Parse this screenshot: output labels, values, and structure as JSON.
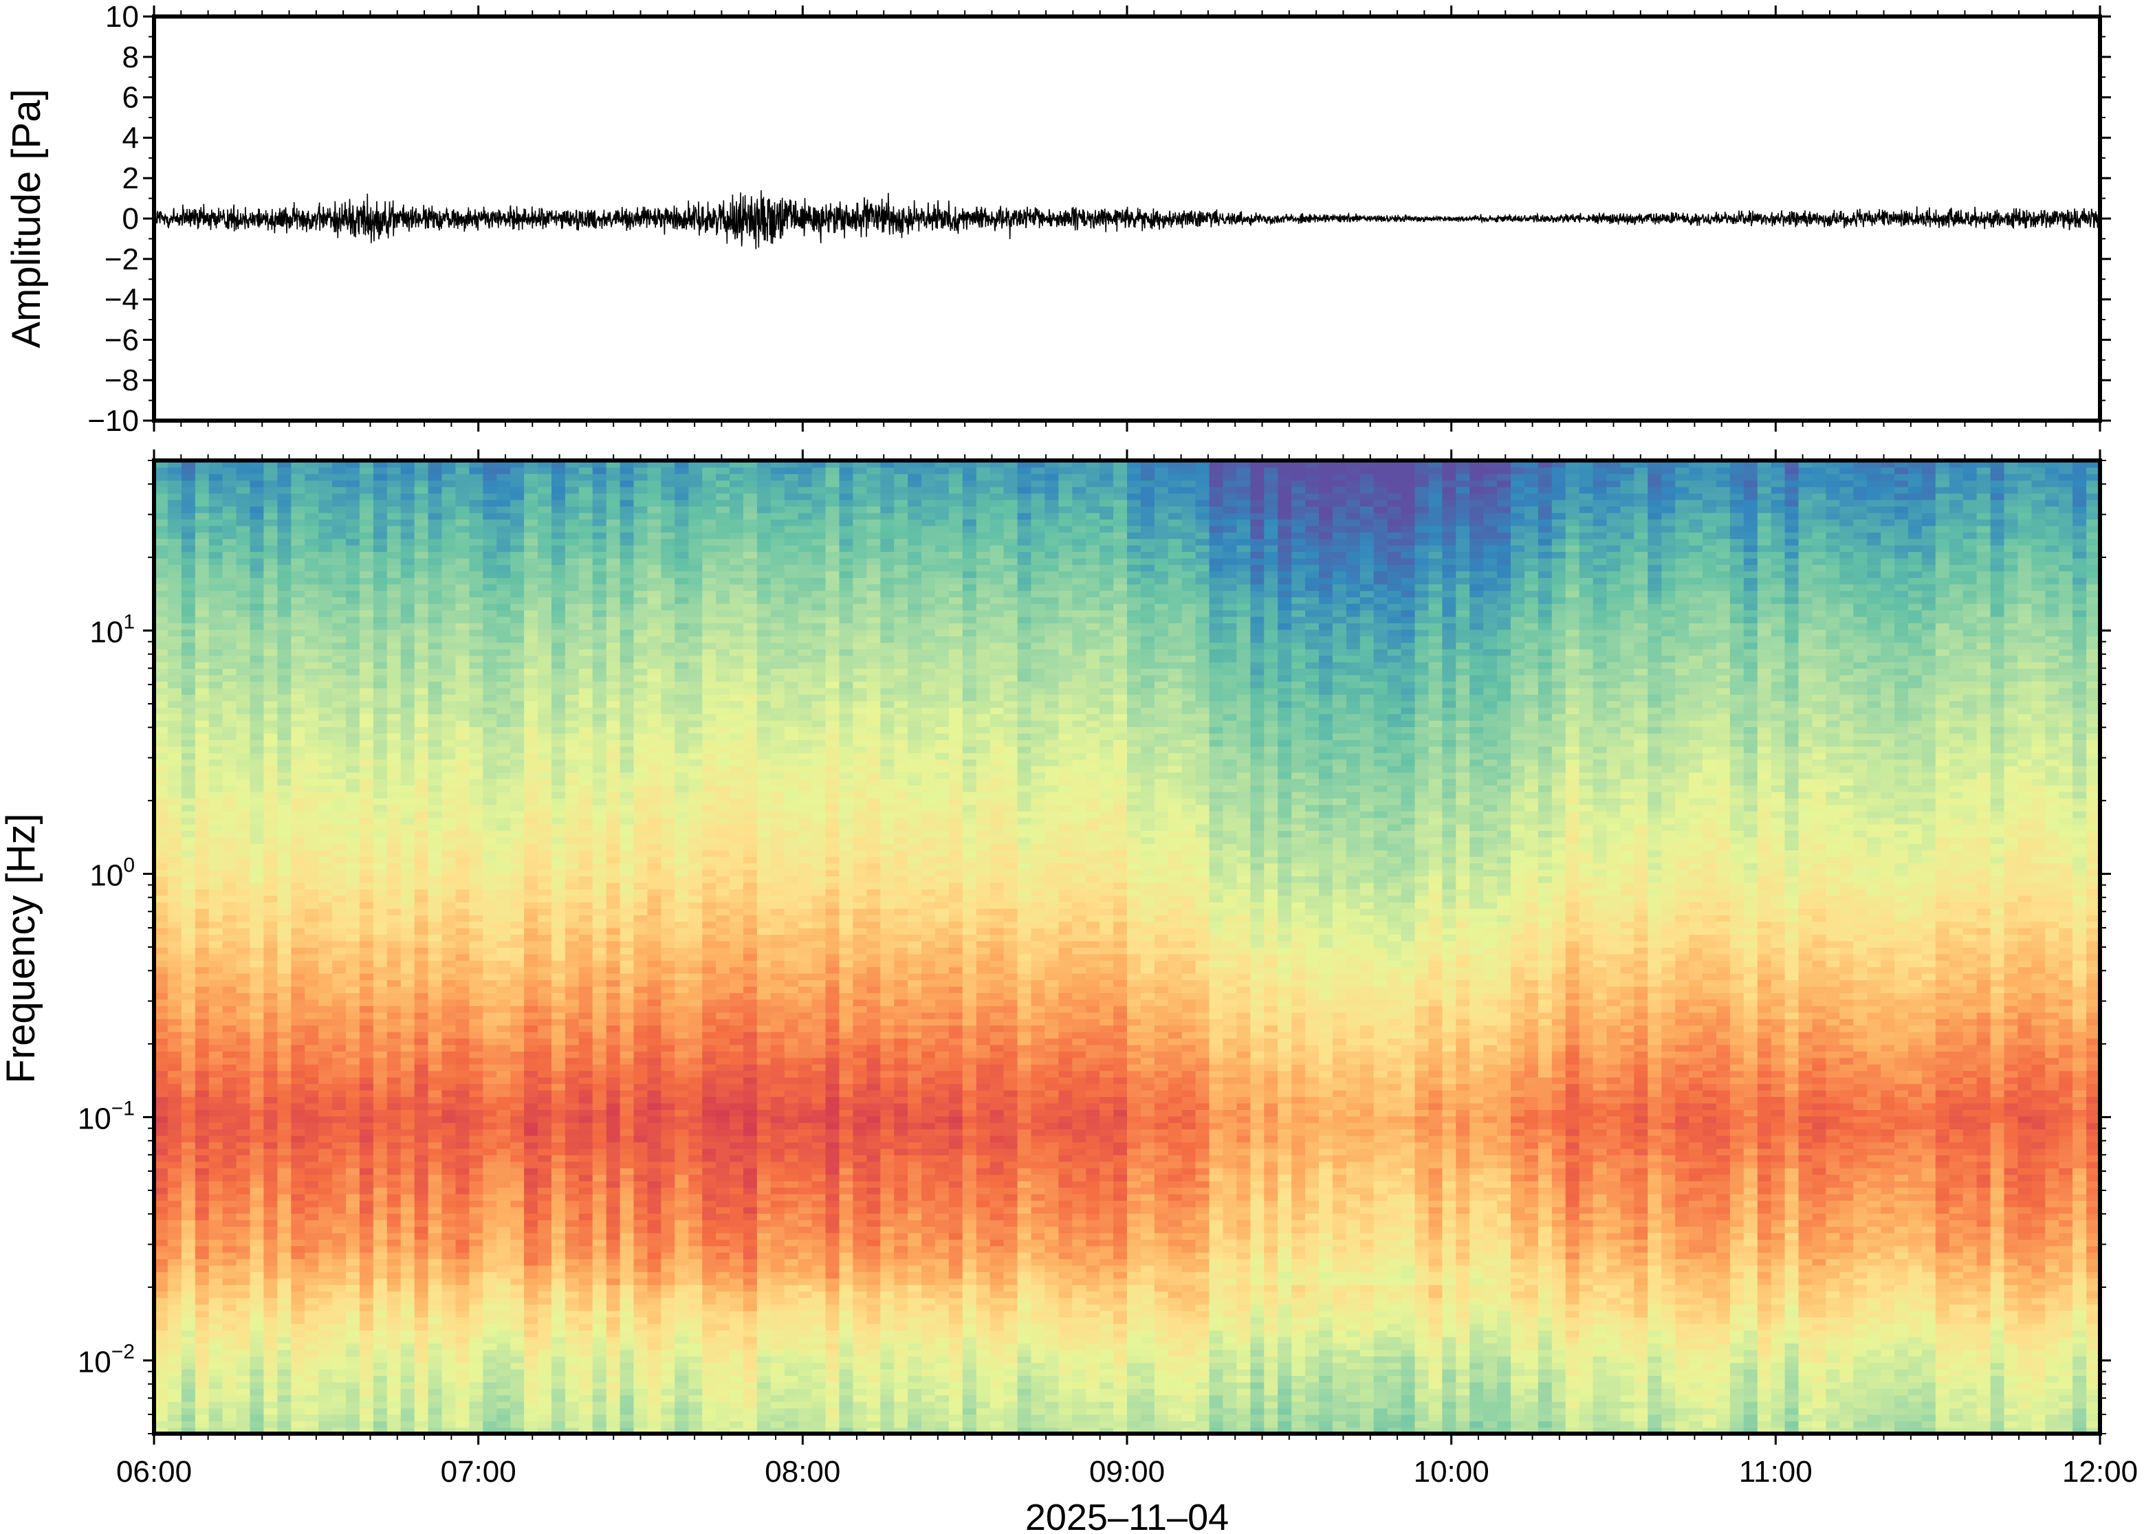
{
  "chart_data": [
    {
      "type": "line",
      "name": "waveform",
      "ylabel": "Amplitude [Pa]",
      "ylim": [
        -10,
        10
      ],
      "y_ticks": [
        10,
        8,
        6,
        4,
        2,
        0,
        -2,
        -4,
        -6,
        -8,
        -10
      ],
      "y_tick_labels": [
        "10",
        "8",
        "6",
        "4",
        "2",
        "0",
        "−2",
        "−4",
        "−6",
        "−8",
        "−10"
      ],
      "x_range": [
        "06:00",
        "12:00"
      ],
      "envelope": {
        "x": [
          "06:00",
          "06:30",
          "06:40",
          "06:45",
          "07:00",
          "07:30",
          "07:45",
          "07:50",
          "08:00",
          "08:15",
          "08:30",
          "09:00",
          "09:30",
          "10:00",
          "10:30",
          "11:00",
          "11:30",
          "12:00"
        ],
        "y_half_range": [
          1.0,
          1.1,
          2.0,
          1.1,
          0.9,
          0.9,
          1.4,
          2.4,
          1.5,
          1.5,
          0.9,
          0.9,
          0.4,
          0.25,
          0.45,
          0.6,
          0.75,
          0.8
        ]
      },
      "grid": false
    },
    {
      "type": "heatmap",
      "name": "spectrogram",
      "ylabel": "Frequency [Hz]",
      "xlabel": "2025–11–04",
      "x_tick_labels": [
        "06:00",
        "07:00",
        "08:00",
        "09:00",
        "10:00",
        "11:00",
        "12:00"
      ],
      "y_scale": "log",
      "ylim_hz": [
        0.005,
        50
      ],
      "y_ticks_hz": [
        0.01,
        0.1,
        1,
        10
      ],
      "y_tick_labels": [
        {
          "base": "10",
          "exp": "1"
        },
        {
          "base": "10",
          "exp": "0"
        },
        {
          "base": "10",
          "exp": "−1"
        },
        {
          "base": "10",
          "exp": "−2"
        }
      ],
      "colormap": "spectral (red = high power, blue = low power)",
      "colors": [
        "#5e4fa2",
        "#3288bd",
        "#66c2a5",
        "#abdda4",
        "#e6f598",
        "#fee08b",
        "#fdae61",
        "#f46d43",
        "#d53e4f"
      ],
      "grid": false
    }
  ]
}
